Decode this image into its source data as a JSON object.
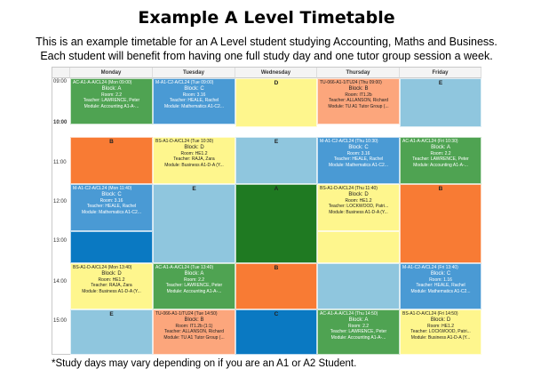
{
  "title": "Example A Level Timetable",
  "subtitle_line1": "This is an example timetable for an A Level student studying Accounting, Maths and Business.",
  "subtitle_line2": "Each student will benefit from having one full study day and one tutor group session a week.",
  "footnote": "*Study days may vary depending on if you are an A1 or A2 Student.",
  "days": [
    "Monday",
    "Tuesday",
    "Wednesday",
    "Thursday",
    "Friday"
  ],
  "times": [
    "09:00",
    "10:00",
    "11:00",
    "12:00",
    "13:00",
    "14:00",
    "15:00"
  ],
  "colors": {
    "accounting": "#4fa352",
    "maths": "#4a9ad4",
    "business": "#fef68d",
    "study": "#8fc6de",
    "tutor": "#fca67c",
    "orange": "#f87b34"
  },
  "cells": {
    "mon1": {
      "hd": "AC-A1-A-A/CL24 (Mon 09:00)",
      "block": "Block: A",
      "room": "Room: 2.2",
      "teacher": "Teacher: LAWRENCE, Peter",
      "module": "Module: Accounting A1-A-..."
    },
    "tue1": {
      "hd": "M-A1-C2-A/CL24 (Tue 09:00)",
      "block": "Block: C",
      "room": "Room: 3.16",
      "teacher": "Teacher: HEALE, Rachel",
      "module": "Module: Mathematics A1-C2..."
    },
    "wed1": {
      "big": "D"
    },
    "thu1": {
      "hd": "TU-066-A1-1/TU24 (Thu 09:00)",
      "block": "Block: B",
      "room": "Room: IT1.2b",
      "teacher": "Teacher: ALLANSON, Richard",
      "module": "Module: TU A1 Tutor Group (..."
    },
    "fri1": {
      "big": "E"
    },
    "mon2": {
      "big": "B"
    },
    "tue2": {
      "hd": "BS-A1-D-A/CL24 (Tue 10:30)",
      "block": "Block: D",
      "room": "Room: HE1.2",
      "teacher": "Teacher: RAJA, Zara",
      "module": "Module: Business A1-D-A (Y..."
    },
    "wed2": {
      "big": "E"
    },
    "thu2": {
      "hd": "M-A1-C2-A/CL24 (Thu 10:30)",
      "block": "Block: C",
      "room": "Room: 3.16",
      "teacher": "Teacher: HEALE, Rachel",
      "module": "Module: Mathematics A1-C2..."
    },
    "fri2": {
      "hd": "AC-A1-A-A/CL24 (Fri 10:30)",
      "block": "Block: A",
      "room": "Room: 2.2",
      "teacher": "Teacher: LAWRENCE, Peter",
      "module": "Module: Accounting A1-A-..."
    },
    "mon3": {
      "hd": "M-A1-C2-A/CL24 (Mon 11:40)",
      "block": "Block: C",
      "room": "Room: 3.16",
      "teacher": "Teacher: HEALE, Rachel",
      "module": "Module: Mathematics A1-C2..."
    },
    "tue3": {
      "big": "E"
    },
    "wed3": {
      "big": "A"
    },
    "thu3": {
      "hd": "BS-A1-D-A/CL24 (Thu 11:40)",
      "block": "Block: D",
      "room": "Room: HE1.2",
      "teacher": "Teacher: LOCKWOOD, Patri...",
      "module": "Module: Business A1-D-A (Y..."
    },
    "fri3": {
      "big": "B"
    },
    "mon5": {
      "hd": "BS-A1-D-A/CL24 (Mon 13:40)",
      "block": "Block: D",
      "room": "Room: HE1.2",
      "teacher": "Teacher: RAJA, Zara",
      "module": "Module: Business A1-D-A (Y..."
    },
    "tue5": {
      "hd": "AC-A1-A-A/CL24 (Tue 13:40)",
      "block": "Block: A",
      "room": "Room: 2.2",
      "teacher": "Teacher: LAWRENCE, Peter",
      "module": "Module: Accounting A1-A-..."
    },
    "wed5": {
      "big": "B"
    },
    "fri5": {
      "hd": "M-A1-C2-A/CL24 (Fri 13:40)",
      "block": "Block: C",
      "room": "Room: 1.16",
      "teacher": "Teacher: HEALE, Rachel",
      "module": "Module: Mathematics A1-C2..."
    },
    "mon6": {
      "big": "E"
    },
    "tue6": {
      "hd": "TU-066-A1-1/TU24 (Tue 14:50)",
      "block": "Block: B",
      "room": "Room: IT1.2b (1:1)",
      "teacher": "Teacher: ALLANSON, Richard",
      "module": "Module: TU A1 Tutor Group (..."
    },
    "wed6": {
      "big": "C"
    },
    "thu6": {
      "hd": "AC-A1-A-A/CL24 (Thu 14:50)",
      "block": "Block: A",
      "room": "Room: 2.2",
      "teacher": "Teacher: LAWRENCE, Peter",
      "module": "Module: Accounting A1-A-..."
    },
    "fri6": {
      "hd": "BS-A1-D-A/CL24 (Fri 14:50)",
      "block": "Block: D",
      "room": "Room: HE1.2",
      "teacher": "Teacher: LOCKWOOD, Patri...",
      "module": "Module: Business A1-D-A (Y..."
    }
  }
}
